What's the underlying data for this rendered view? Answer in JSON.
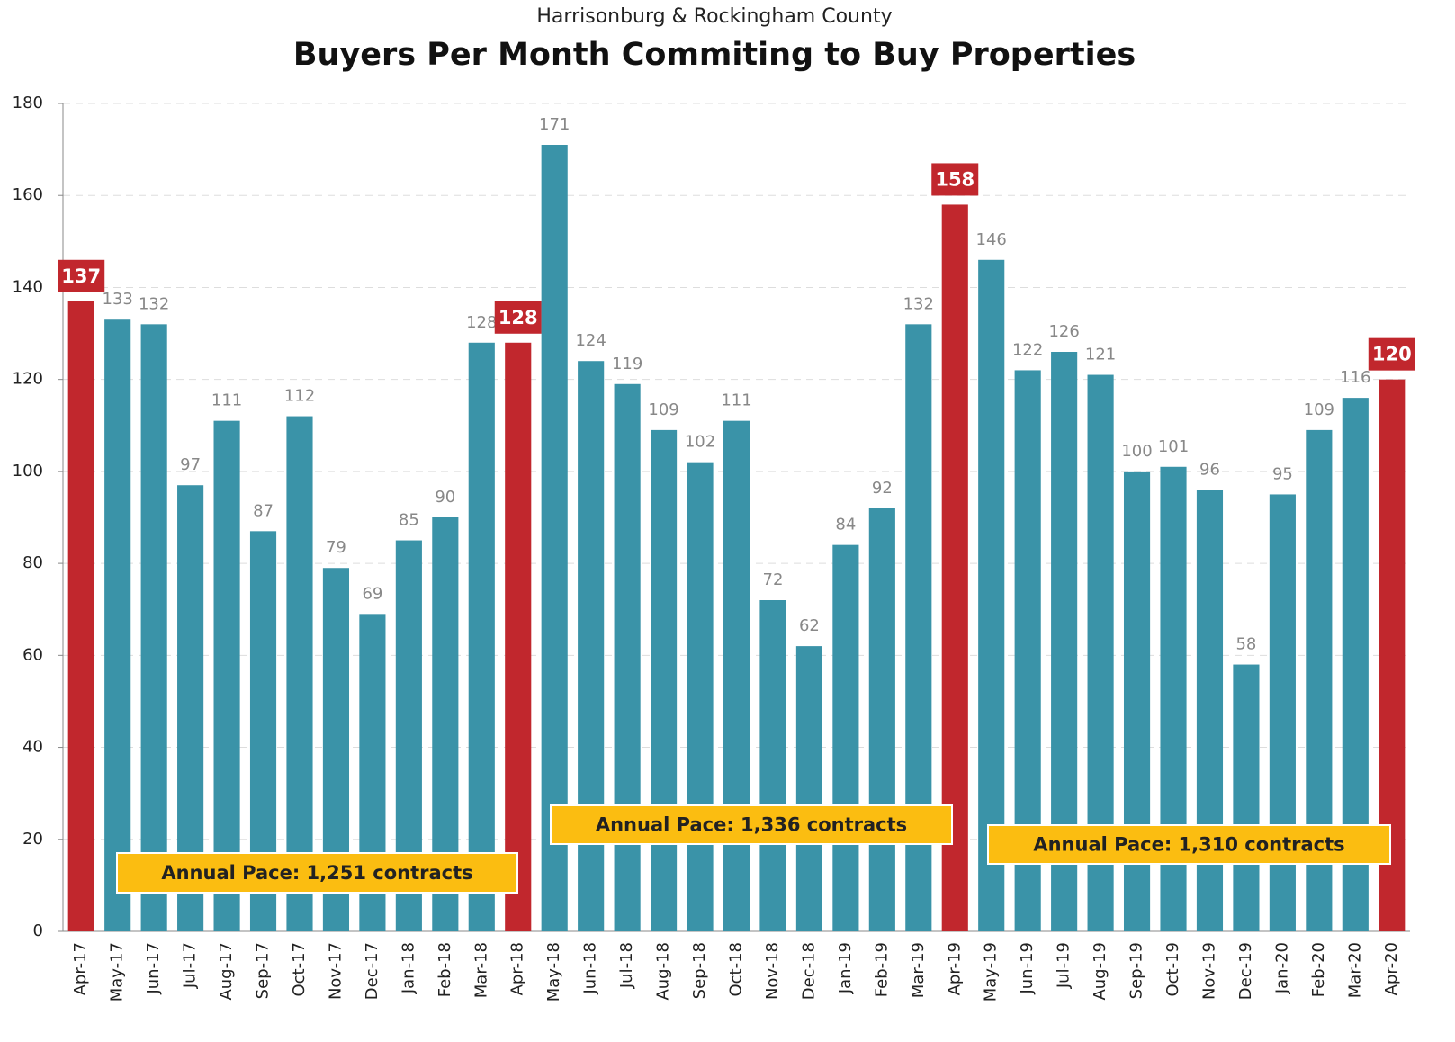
{
  "chart_data": {
    "type": "bar",
    "subtitle": "Harrisonburg & Rockingham County",
    "title": "Buyers Per Month Commiting to Buy Properties",
    "categories": [
      "Apr-17",
      "May-17",
      "Jun-17",
      "Jul-17",
      "Aug-17",
      "Sep-17",
      "Oct-17",
      "Nov-17",
      "Dec-17",
      "Jan-18",
      "Feb-18",
      "Mar-18",
      "Apr-18",
      "May-18",
      "Jun-18",
      "Jul-18",
      "Aug-18",
      "Sep-18",
      "Oct-18",
      "Nov-18",
      "Dec-18",
      "Jan-19",
      "Feb-19",
      "Mar-19",
      "Apr-19",
      "May-19",
      "Jun-19",
      "Jul-19",
      "Aug-19",
      "Sep-19",
      "Oct-19",
      "Nov-19",
      "Dec-19",
      "Jan-20",
      "Feb-20",
      "Mar-20",
      "Apr-20"
    ],
    "values": [
      137,
      133,
      132,
      97,
      111,
      87,
      112,
      79,
      69,
      85,
      90,
      128,
      128,
      171,
      124,
      119,
      109,
      102,
      111,
      72,
      62,
      84,
      92,
      132,
      158,
      146,
      122,
      126,
      121,
      100,
      101,
      96,
      58,
      95,
      109,
      116,
      120
    ],
    "colors": [
      "#c1272d",
      "#3a93a8",
      "#3a93a8",
      "#3a93a8",
      "#3a93a8",
      "#3a93a8",
      "#3a93a8",
      "#3a93a8",
      "#3a93a8",
      "#3a93a8",
      "#3a93a8",
      "#3a93a8",
      "#c1272d",
      "#3a93a8",
      "#3a93a8",
      "#3a93a8",
      "#3a93a8",
      "#3a93a8",
      "#3a93a8",
      "#3a93a8",
      "#3a93a8",
      "#3a93a8",
      "#3a93a8",
      "#3a93a8",
      "#c1272d",
      "#3a93a8",
      "#3a93a8",
      "#3a93a8",
      "#3a93a8",
      "#3a93a8",
      "#3a93a8",
      "#3a93a8",
      "#3a93a8",
      "#3a93a8",
      "#3a93a8",
      "#3a93a8",
      "#c1272d"
    ],
    "highlight_color": "#c1272d",
    "ylim": [
      0,
      180
    ],
    "yticks": [
      0,
      20,
      40,
      60,
      80,
      100,
      120,
      140,
      160,
      180
    ],
    "grid": true,
    "annotations": [
      "Annual Pace: 1,251 contracts",
      "Annual Pace: 1,336 contracts",
      "Annual Pace: 1,310 contracts"
    ]
  }
}
